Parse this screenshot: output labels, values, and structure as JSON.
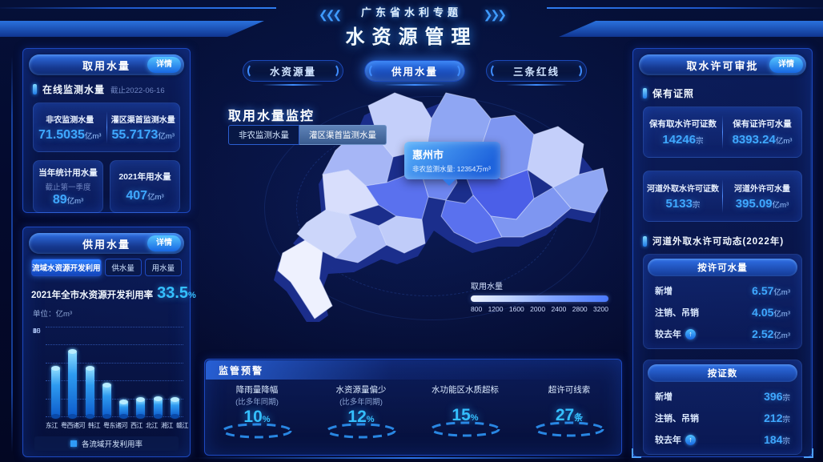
{
  "colors": {
    "accent": "#35c0ff",
    "value_blue": "#3fa8ff",
    "highlight_region": "#4b5fe8",
    "panel_border": "#1d49c0"
  },
  "icons": {
    "up_arrow": "↑",
    "chevrons_left": "❮❮❮",
    "chevrons_right": "❯❯❯"
  },
  "header": {
    "subtitle": "广东省水利专题",
    "title": "水资源管理"
  },
  "nav_tabs": [
    {
      "label": "水资源量",
      "active": false
    },
    {
      "label": "供用水量",
      "active": true
    },
    {
      "label": "三条红线",
      "active": false
    }
  ],
  "intake_panel": {
    "title": "取用水量",
    "detail_label": "详情",
    "section_title": "在线监测水量",
    "section_note": "截止2022-06-16",
    "online_stats": [
      {
        "label": "非农监测水量",
        "value": "71.5035",
        "unit": "亿m³"
      },
      {
        "label": "灌区渠首监测水量",
        "value": "55.7173",
        "unit": "亿m³"
      }
    ],
    "year_stats": [
      {
        "label": "当年统计用水量",
        "note": "截止第一季度",
        "value": "89",
        "unit": "亿m³"
      },
      {
        "label": "2021年用水量",
        "note": "",
        "value": "407",
        "unit": "亿m³"
      }
    ]
  },
  "supply_panel": {
    "title": "供用水量",
    "detail_label": "详情",
    "tabs": [
      {
        "label": "流域水资源开发利用",
        "active": true
      },
      {
        "label": "供水量",
        "active": false
      },
      {
        "label": "用水量",
        "active": false
      }
    ],
    "summary_label": "2021年全市水资源开发利用率",
    "summary_value": "33.5",
    "summary_unit": "%",
    "unit_label": "单位：亿m³"
  },
  "chart_data": [
    {
      "type": "bar",
      "title": "各流域开发利用率",
      "categories": [
        "东江",
        "粤西诸河",
        "韩江",
        "粤东诸河",
        "西江",
        "北江",
        "湘江",
        "赣江"
      ],
      "values": [
        40,
        48,
        40,
        26,
        12,
        14,
        15,
        14
      ],
      "y_ticks_top_to_bottom": [
        55,
        50,
        45,
        30,
        15,
        0
      ],
      "ylabel": "亿m³",
      "legend": "各流域开发利用率",
      "grid": "dotted"
    },
    {
      "type": "heatmap",
      "title": "取用水量",
      "note": "choropleth map of Guangdong cities",
      "legend_ticks": [
        "800",
        "1200",
        "1600",
        "2000",
        "2400",
        "2800",
        "3200"
      ],
      "highlight": {
        "city": "惠州市",
        "metric": "非农监测水量",
        "value": 12354,
        "unit": "万m³"
      }
    }
  ],
  "monitor": {
    "title": "取用水量监控",
    "toggles": [
      {
        "label": "非农监测水量"
      },
      {
        "label": "灌区渠首监测水量"
      }
    ],
    "tooltip": {
      "city": "惠州市",
      "label": "非农监测水量:",
      "value": "12354",
      "unit": "万m³"
    },
    "legend_label": "取用水量"
  },
  "alerts": {
    "title": "监管预警",
    "items": [
      {
        "label": "降雨量降幅",
        "sublabel": "(比多年同期)",
        "value": "10",
        "unit": "%"
      },
      {
        "label": "水资源量偏少",
        "sublabel": "(比多年同期)",
        "value": "12",
        "unit": "%"
      },
      {
        "label": "水功能区水质超标",
        "sublabel": "",
        "value": "15",
        "unit": "%"
      },
      {
        "label": "超许可线索",
        "sublabel": "",
        "value": "27",
        "unit": "条"
      }
    ]
  },
  "permit_panel": {
    "title": "取水许可审批",
    "detail_label": "详情",
    "section1_title": "保有证照",
    "cards": [
      [
        {
          "label": "保有取水许可证数",
          "value": "14246",
          "unit": "宗"
        },
        {
          "label": "保有证许可水量",
          "value": "8393.24",
          "unit": "亿m³"
        }
      ],
      [
        {
          "label": "河道外取水许可证数",
          "value": "5133",
          "unit": "宗"
        },
        {
          "label": "河道外许可水量",
          "value": "395.09",
          "unit": "亿m³"
        }
      ]
    ],
    "section2_title": "河道外取水许可动态(2022年)",
    "groups": [
      {
        "header": "按许可水量",
        "rows": [
          {
            "label": "新增",
            "value": "6.57",
            "unit": "亿m³",
            "arrow": false
          },
          {
            "label": "注销、吊销",
            "value": "4.05",
            "unit": "亿m³",
            "arrow": false
          },
          {
            "label": "较去年",
            "value": "2.52",
            "unit": "亿m³",
            "arrow": true
          }
        ]
      },
      {
        "header": "按证数",
        "rows": [
          {
            "label": "新增",
            "value": "396",
            "unit": "宗",
            "arrow": false
          },
          {
            "label": "注销、吊销",
            "value": "212",
            "unit": "宗",
            "arrow": false
          },
          {
            "label": "较去年",
            "value": "184",
            "unit": "宗",
            "arrow": true
          }
        ]
      }
    ]
  }
}
